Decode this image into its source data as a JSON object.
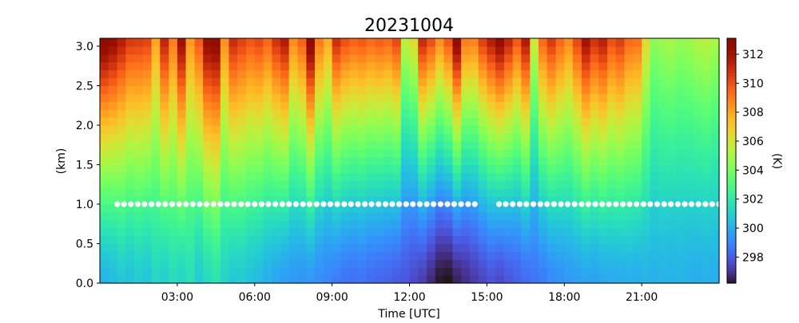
{
  "chart_data": {
    "type": "heatmap",
    "title": "20231004",
    "xlabel": "Time [UTC]",
    "ylabel": "(km)",
    "colorbar_label": "(K)",
    "colormap": "turbo",
    "x_range_hours": [
      0,
      24
    ],
    "y_range_km": [
      0,
      3.1
    ],
    "vmin": 296.2,
    "vmax": 313.1,
    "x_ticks": [
      {
        "value": 3,
        "label": "03:00"
      },
      {
        "value": 6,
        "label": "06:00"
      },
      {
        "value": 9,
        "label": "09:00"
      },
      {
        "value": 12,
        "label": "12:00"
      },
      {
        "value": 15,
        "label": "15:00"
      },
      {
        "value": 18,
        "label": "18:00"
      },
      {
        "value": 21,
        "label": "21:00"
      }
    ],
    "y_ticks": [
      {
        "value": 0.0,
        "label": "0.0"
      },
      {
        "value": 0.5,
        "label": "0.5"
      },
      {
        "value": 1.0,
        "label": "1.0"
      },
      {
        "value": 1.5,
        "label": "1.5"
      },
      {
        "value": 2.0,
        "label": "2.0"
      },
      {
        "value": 2.5,
        "label": "2.5"
      },
      {
        "value": 3.0,
        "label": "3.0"
      }
    ],
    "colorbar_ticks": [
      {
        "value": 298,
        "label": "298"
      },
      {
        "value": 300,
        "label": "300"
      },
      {
        "value": 302,
        "label": "302"
      },
      {
        "value": 304,
        "label": "304"
      },
      {
        "value": 306,
        "label": "306"
      },
      {
        "value": 308,
        "label": "308"
      },
      {
        "value": 310,
        "label": "310"
      },
      {
        "value": 312,
        "label": "312"
      }
    ],
    "height_levels_km": [
      0.0,
      0.1,
      0.2,
      0.3,
      0.4,
      0.5,
      0.6,
      0.7,
      0.8,
      0.9,
      1.0,
      1.1,
      1.2,
      1.3,
      1.4,
      1.5,
      1.6,
      1.7,
      1.8,
      1.9,
      2.0,
      2.1,
      2.2,
      2.3,
      2.4,
      2.5,
      2.6,
      2.7,
      2.8,
      2.9,
      3.0
    ],
    "times_hours": [
      0.0,
      0.33,
      0.67,
      1.0,
      1.33,
      1.67,
      2.0,
      2.33,
      2.67,
      3.0,
      3.33,
      3.67,
      4.0,
      4.33,
      4.67,
      5.0,
      5.33,
      5.67,
      6.0,
      6.33,
      6.67,
      7.0,
      7.33,
      7.67,
      8.0,
      8.33,
      8.67,
      9.0,
      9.33,
      9.67,
      10.0,
      10.33,
      10.67,
      11.0,
      11.33,
      11.67,
      12.0,
      12.33,
      12.67,
      13.0,
      13.33,
      13.67,
      14.0,
      14.33,
      14.67,
      15.0,
      15.33,
      15.67,
      16.0,
      16.33,
      16.67,
      17.0,
      17.33,
      17.67,
      18.0,
      18.33,
      18.67,
      19.0,
      19.33,
      19.67,
      20.0,
      20.33,
      20.67,
      21.0,
      21.33,
      21.67,
      22.0,
      22.33,
      22.67,
      23.0,
      23.33,
      23.67
    ],
    "profile_model": {
      "description": "temperature(K) = base_by_height + column_anomaly; listed here as column surface and top values",
      "surface_K": [
        300.2,
        300.4,
        300.8,
        300.6,
        300.9,
        300.7,
        301.3,
        301.0,
        301.5,
        301.2,
        301.6,
        300.9,
        301.4,
        301.8,
        301.2,
        300.8,
        300.9,
        300.6,
        300.4,
        300.1,
        299.8,
        299.6,
        299.5,
        299.4,
        299.5,
        299.2,
        299.0,
        298.8,
        298.6,
        298.5,
        298.6,
        298.4,
        298.3,
        298.2,
        298.0,
        297.9,
        297.6,
        297.3,
        296.8,
        296.3,
        296.2,
        296.6,
        296.9,
        297.2,
        297.5,
        297.8,
        297.6,
        297.9,
        298.1,
        298.4,
        298.6,
        298.8,
        299.1,
        299.3,
        299.5,
        299.6,
        299.8,
        299.7,
        299.9,
        300.0,
        300.0,
        300.1,
        300.0,
        300.2,
        300.1,
        300.2,
        300.1,
        300.2,
        300.1,
        300.0,
        300.1,
        300.0
      ],
      "top_K": [
        313.0,
        312.4,
        311.5,
        310.6,
        310.5,
        310.3,
        308.0,
        311.2,
        309.0,
        312.2,
        308.3,
        309.8,
        312.5,
        312.8,
        308.5,
        311.0,
        310.4,
        309.9,
        310.2,
        309.5,
        310.8,
        311.6,
        308.6,
        309.6,
        313.0,
        309.0,
        307.8,
        310.9,
        310.0,
        309.6,
        309.8,
        309.4,
        309.7,
        309.4,
        310.2,
        305.5,
        306.4,
        311.0,
        310.0,
        308.5,
        309.8,
        312.8,
        309.0,
        308.8,
        310.4,
        311.5,
        312.5,
        311.2,
        309.8,
        311.6,
        305.8,
        309.4,
        310.6,
        309.5,
        308.6,
        310.2,
        312.0,
        310.8,
        311.4,
        310.0,
        310.5,
        309.4,
        309.2,
        306.4,
        304.4,
        304.8,
        305.0,
        304.6,
        304.8,
        305.2,
        305.4,
        305.0
      ]
    },
    "overlay": {
      "type": "scatter",
      "marker": "white circles",
      "height_km": 1.0,
      "x_hours": [
        0.67,
        0.93,
        1.2,
        1.47,
        1.73,
        2.0,
        2.27,
        2.53,
        2.8,
        3.07,
        3.33,
        3.6,
        3.87,
        4.13,
        4.4,
        4.67,
        4.93,
        5.2,
        5.47,
        5.73,
        6.0,
        6.27,
        6.53,
        6.8,
        7.07,
        7.33,
        7.6,
        7.87,
        8.13,
        8.4,
        8.67,
        8.93,
        9.2,
        9.47,
        9.73,
        10.0,
        10.27,
        10.53,
        10.8,
        11.07,
        11.33,
        11.6,
        11.87,
        12.13,
        12.4,
        12.67,
        12.93,
        13.2,
        13.47,
        13.73,
        14.0,
        14.27,
        14.53,
        15.47,
        15.73,
        16.0,
        16.27,
        16.53,
        16.8,
        17.07,
        17.33,
        17.6,
        17.87,
        18.13,
        18.4,
        18.67,
        18.93,
        19.2,
        19.47,
        19.73,
        20.0,
        20.27,
        20.53,
        20.8,
        21.07,
        21.33,
        21.6,
        21.87,
        22.13,
        22.4,
        22.67,
        22.93,
        23.2,
        23.47,
        23.73,
        24.0
      ]
    }
  }
}
